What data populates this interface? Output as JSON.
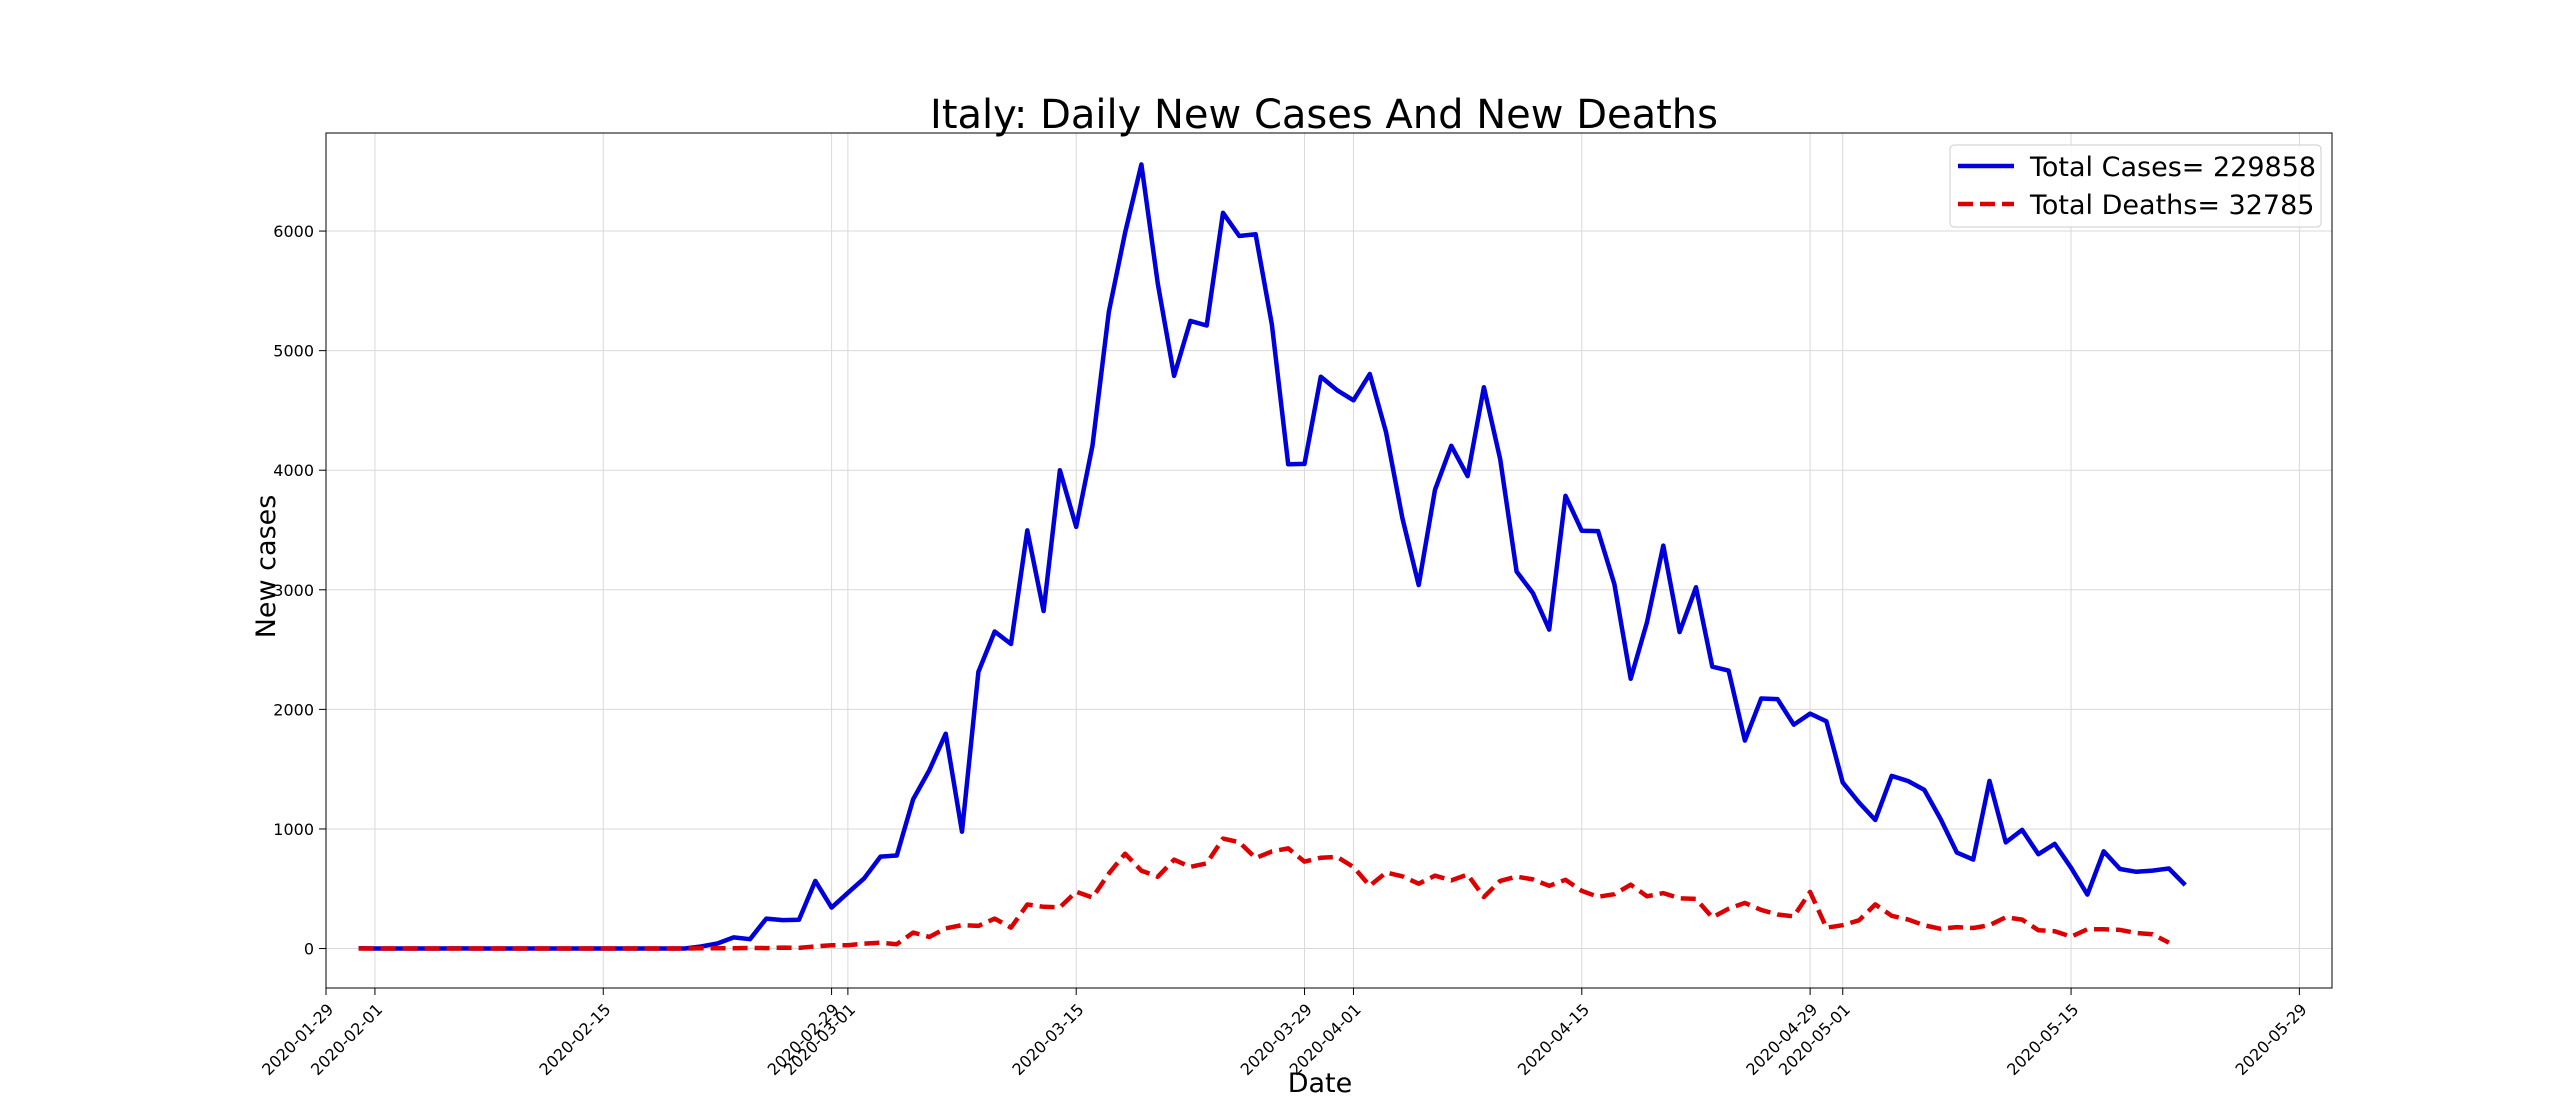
{
  "chart_data": {
    "type": "line",
    "title": "Italy: Daily New Cases And New Deaths",
    "xlabel": "Date",
    "ylabel": "New cases",
    "x_start": "2020-01-31",
    "xlim": [
      "2020-01-29",
      "2020-05-31"
    ],
    "ylim": [
      -330,
      6820
    ],
    "grid": true,
    "legend_position": "top-right",
    "x_ticks": [
      "2020-01-29",
      "2020-02-01",
      "2020-02-15",
      "2020-02-29",
      "2020-03-01",
      "2020-03-15",
      "2020-03-29",
      "2020-04-01",
      "2020-04-15",
      "2020-04-29",
      "2020-05-01",
      "2020-05-15",
      "2020-05-29"
    ],
    "y_ticks": [
      0,
      1000,
      2000,
      3000,
      4000,
      5000,
      6000
    ],
    "y_tick_labels": [
      "0",
      "1000",
      "2000",
      "3000",
      "4000",
      "5000",
      "6000"
    ],
    "series": [
      {
        "name": "Total Cases= 229858",
        "color": "#0000dd",
        "style": "solid",
        "values": [
          2,
          0,
          0,
          0,
          0,
          0,
          1,
          0,
          0,
          0,
          0,
          0,
          0,
          0,
          0,
          0,
          0,
          0,
          0,
          0,
          0,
          17,
          42,
          93,
          78,
          250,
          238,
          240,
          566,
          342,
          466,
          587,
          769,
          778,
          1247,
          1492,
          1797,
          977,
          2313,
          2651,
          2547,
          3497,
          2823,
          4000,
          3526,
          4207,
          5322,
          5986,
          6557,
          5560,
          4789,
          5249,
          5210,
          6153,
          5959,
          5974,
          5217,
          4050,
          4053,
          4782,
          4668,
          4585,
          4805,
          4316,
          3599,
          3039,
          3836,
          4204,
          3951,
          4694,
          4092,
          3153,
          2972,
          2667,
          3786,
          3493,
          3491,
          3047,
          2256,
          2729,
          3370,
          2646,
          3021,
          2357,
          2324,
          1739,
          2091,
          2086,
          1872,
          1965,
          1900,
          1389,
          1221,
          1075,
          1444,
          1401,
          1327,
          1083,
          802,
          744,
          1402,
          888,
          992,
          789,
          875,
          675,
          451,
          813,
          665,
          642,
          652,
          669,
          531
        ]
      },
      {
        "name": "Total Deaths= 32785",
        "color": "#dd0000",
        "style": "dashed",
        "values": [
          0,
          0,
          0,
          0,
          0,
          0,
          0,
          0,
          0,
          0,
          0,
          0,
          0,
          0,
          0,
          0,
          0,
          0,
          0,
          0,
          0,
          2,
          3,
          2,
          5,
          4,
          8,
          5,
          18,
          27,
          28,
          41,
          49,
          36,
          133,
          97,
          168,
          196,
          189,
          250,
          175,
          368,
          349,
          345,
          475,
          427,
          627,
          793,
          651,
          601,
          743,
          683,
          712,
          919,
          889,
          756,
          812,
          837,
          727,
          760,
          766,
          681,
          525,
          636,
          604,
          542,
          610,
          570,
          619,
          431,
          566,
          602,
          578,
          525,
          575,
          482,
          433,
          454,
          534,
          437,
          464,
          420,
          415,
          260,
          333,
          382,
          323,
          285,
          269,
          474,
          174,
          195,
          236,
          369,
          274,
          243,
          194,
          165,
          179,
          172,
          195,
          262,
          242,
          153,
          145,
          99,
          162,
          161,
          156,
          130,
          119,
          50
        ]
      }
    ]
  }
}
